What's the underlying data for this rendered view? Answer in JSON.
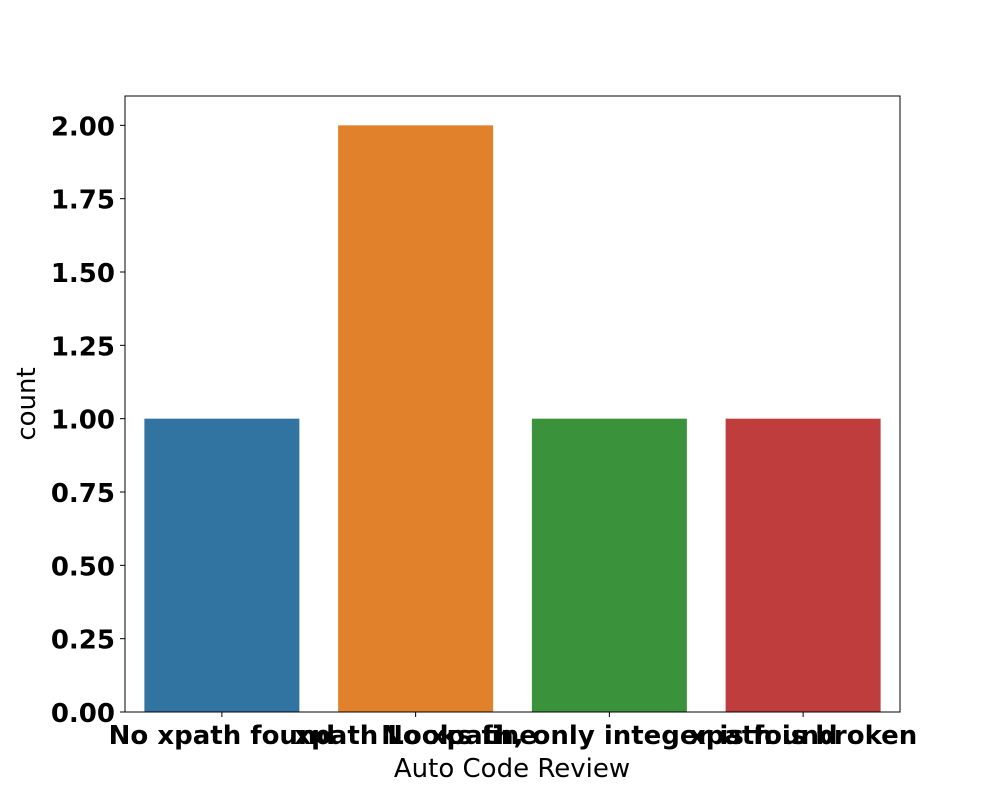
{
  "chart_data": {
    "type": "bar",
    "categories": [
      "No xpath found",
      "xpath Looks fine",
      "No xpath, only integer is found",
      "xpath is broken"
    ],
    "values": [
      1,
      2,
      1,
      1
    ],
    "colors": [
      "#3274a1",
      "#e1812c",
      "#3a923a",
      "#c03d3e"
    ],
    "xlabel": "Auto Code Review",
    "ylabel": "count",
    "ylim": [
      0,
      2.1
    ],
    "yticks": [
      "0.00",
      "0.25",
      "0.50",
      "0.75",
      "1.00",
      "1.25",
      "1.50",
      "1.75",
      "2.00"
    ],
    "grid": false,
    "legend": "none"
  }
}
